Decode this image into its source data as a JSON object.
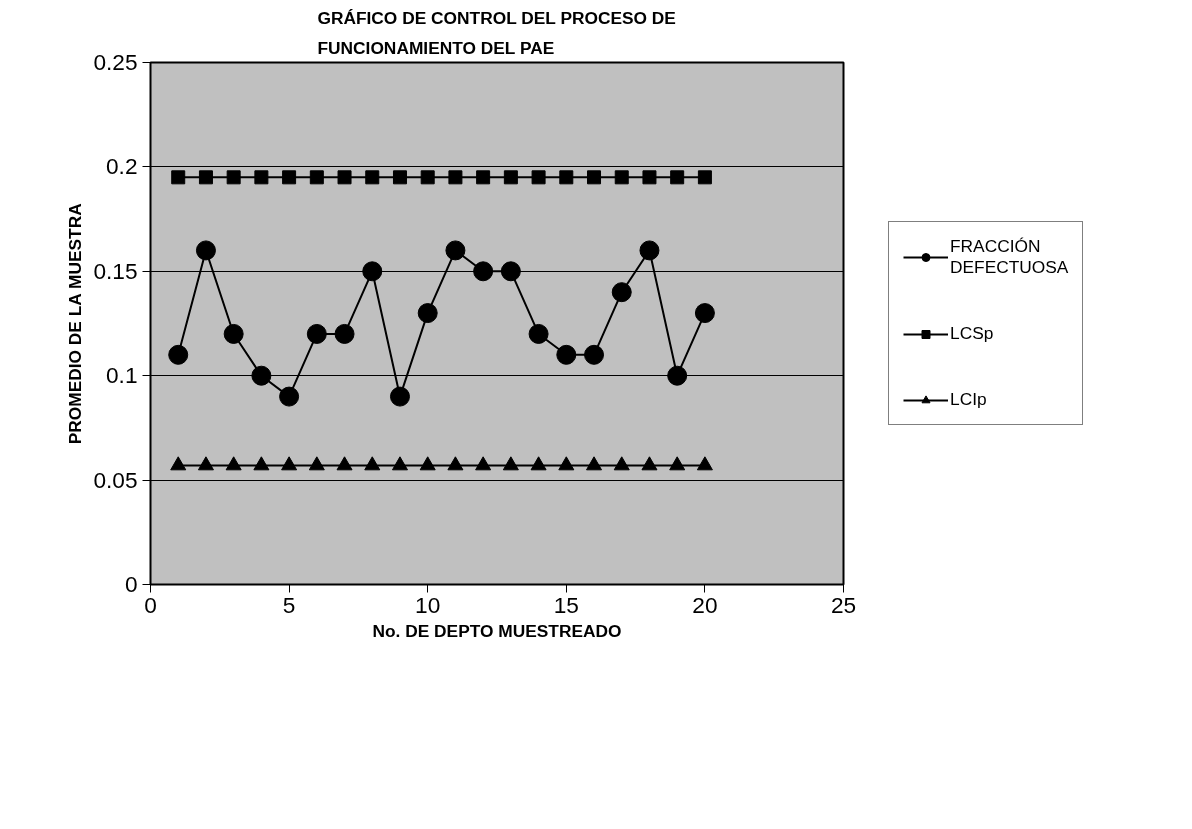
{
  "chart_data": {
    "type": "line",
    "title": "GRÁFICO DE CONTROL DEL PROCESO DE\nFUNCIONAMIENTO DEL PAE",
    "xlabel": "No. DE DEPTO MUESTREADO",
    "ylabel": "PROMEDIO DE LA MUESTRA",
    "x": [
      1,
      2,
      3,
      4,
      5,
      6,
      7,
      8,
      9,
      10,
      11,
      12,
      13,
      14,
      15,
      16,
      17,
      18,
      19,
      20
    ],
    "series": [
      {
        "name": "FRACCIÓN DEFECTUOSA",
        "color": "#000000",
        "marker": "circle",
        "values": [
          0.11,
          0.16,
          0.12,
          0.1,
          0.09,
          0.12,
          0.12,
          0.15,
          0.09,
          0.13,
          0.16,
          0.15,
          0.15,
          0.12,
          0.11,
          0.11,
          0.14,
          0.16,
          0.1,
          0.13
        ]
      },
      {
        "name": "LCSp",
        "color": "#000000",
        "marker": "square",
        "values": [
          0.195,
          0.195,
          0.195,
          0.195,
          0.195,
          0.195,
          0.195,
          0.195,
          0.195,
          0.195,
          0.195,
          0.195,
          0.195,
          0.195,
          0.195,
          0.195,
          0.195,
          0.195,
          0.195,
          0.195
        ]
      },
      {
        "name": "LCIp",
        "color": "#000000",
        "marker": "triangle",
        "values": [
          0.057,
          0.057,
          0.057,
          0.057,
          0.057,
          0.057,
          0.057,
          0.057,
          0.057,
          0.057,
          0.057,
          0.057,
          0.057,
          0.057,
          0.057,
          0.057,
          0.057,
          0.057,
          0.057,
          0.057
        ]
      }
    ],
    "xlim": [
      0,
      25
    ],
    "xticks": [
      0,
      5,
      10,
      15,
      20,
      25
    ],
    "ylim": [
      0,
      0.25
    ],
    "yticks": [
      0,
      0.05,
      0.1,
      0.15,
      0.2,
      0.25
    ],
    "grid": "y",
    "legend": "right",
    "line_style": "solid"
  }
}
